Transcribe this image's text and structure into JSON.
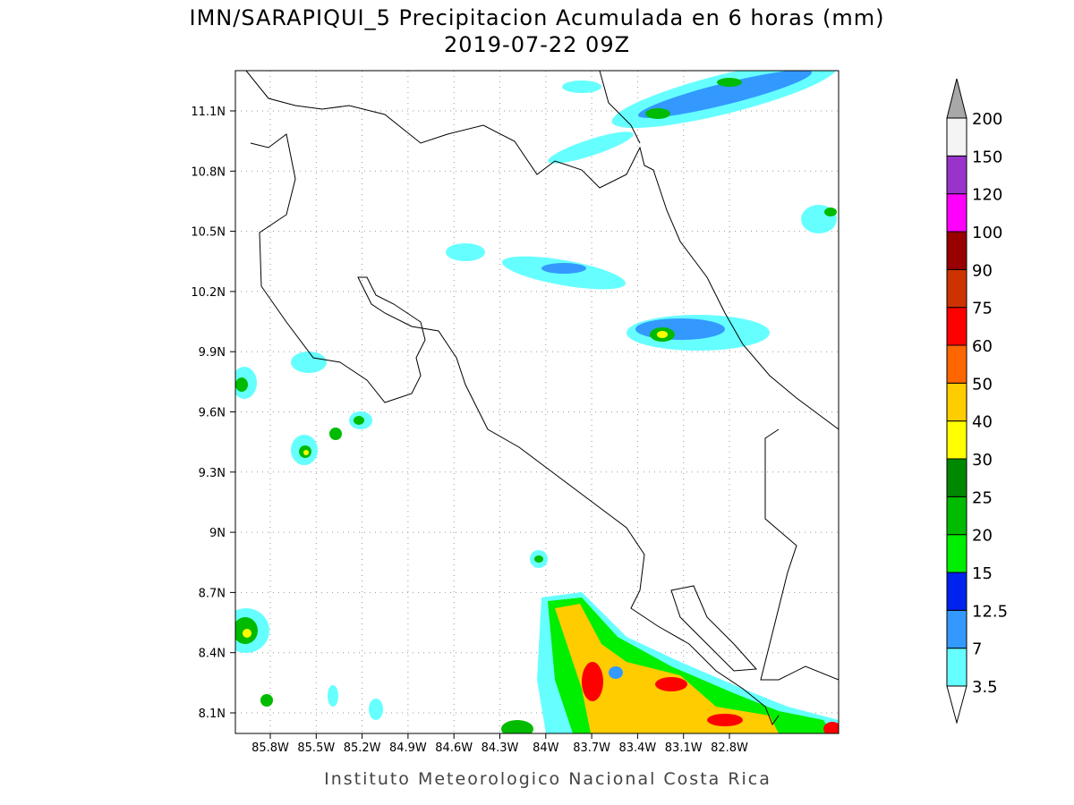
{
  "title": "IMN/SARAPIQUI_5 Precipitacion Acumulada en 6 horas (mm)",
  "subtitle": "2019-07-22 09Z",
  "footer": "Instituto Meteorologico Nacional Costa Rica",
  "map": {
    "lat_labels": [
      "11.1N",
      "10.8N",
      "10.5N",
      "10.2N",
      "9.9N",
      "9.6N",
      "9.3N",
      "9N",
      "8.7N",
      "8.4N",
      "8.1N"
    ],
    "lon_labels": [
      "85.8W",
      "85.5W",
      "85.2W",
      "84.9W",
      "84.6W",
      "84.3W",
      "84W",
      "83.7W",
      "83.4W",
      "83.1W",
      "82.8W"
    ]
  },
  "colorbar": {
    "levels": [
      3.5,
      7,
      12.5,
      15,
      20,
      25,
      30,
      40,
      50,
      60,
      75,
      90,
      100,
      120,
      150,
      200
    ],
    "colors": [
      "#ffffff",
      "#66ffff",
      "#3399ff",
      "#0022ee",
      "#00ee00",
      "#00bb00",
      "#008800",
      "#ffff00",
      "#ffcc00",
      "#ff6600",
      "#ff0000",
      "#cc3300",
      "#990000",
      "#ff00ff",
      "#9933cc",
      "#f4f4f4",
      "#a8a8a8"
    ]
  }
}
